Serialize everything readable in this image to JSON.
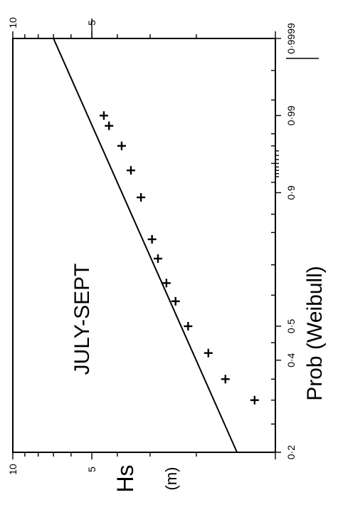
{
  "chart_data": {
    "type": "scatter",
    "title": "JULY-SEPT",
    "xlabel": "Prob (Weibull)",
    "ylabel": "Hs",
    "ylabel_unit": "(m)",
    "x_scale": "weibull-probability",
    "y_scale": "log",
    "xlim": [
      0.2,
      0.9999
    ],
    "ylim": [
      1,
      10
    ],
    "x_ticks": [
      {
        "value": 0.2,
        "label": "0·2"
      },
      {
        "value": 0.4,
        "label": "0·4"
      },
      {
        "value": 0.5,
        "label": "0·5"
      },
      {
        "value": 0.9,
        "label": "0·9"
      },
      {
        "value": 0.99,
        "label": "0·99"
      },
      {
        "value": 0.9999,
        "label": "0·9999"
      }
    ],
    "y_ticks": [
      {
        "value": 5,
        "label": "5"
      },
      {
        "value": 10,
        "label": "10"
      }
    ],
    "series": [
      {
        "type": "scatter",
        "marker": "plus",
        "points": [
          {
            "x": 0.3,
            "y": 1.2
          },
          {
            "x": 0.35,
            "y": 1.55
          },
          {
            "x": 0.42,
            "y": 1.8
          },
          {
            "x": 0.5,
            "y": 2.15
          },
          {
            "x": 0.58,
            "y": 2.4
          },
          {
            "x": 0.64,
            "y": 2.6
          },
          {
            "x": 0.72,
            "y": 2.8
          },
          {
            "x": 0.78,
            "y": 2.95
          },
          {
            "x": 0.89,
            "y": 3.25
          },
          {
            "x": 0.94,
            "y": 3.55
          },
          {
            "x": 0.97,
            "y": 3.85
          },
          {
            "x": 0.985,
            "y": 4.3
          },
          {
            "x": 0.99,
            "y": 4.5
          }
        ]
      },
      {
        "type": "line",
        "points": [
          {
            "x": 0.2,
            "y": 1.4
          },
          {
            "x": 0.9999,
            "y": 7.0
          }
        ]
      }
    ]
  }
}
